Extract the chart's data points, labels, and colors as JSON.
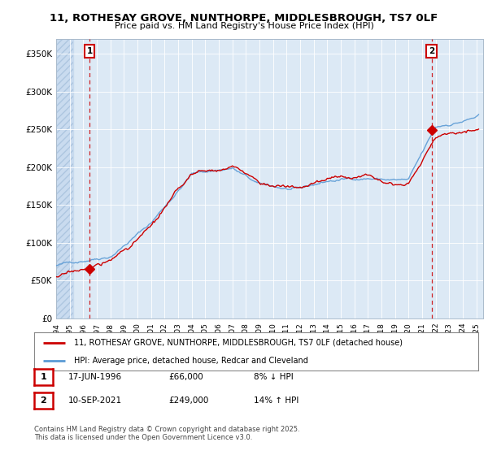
{
  "title": "11, ROTHESAY GROVE, NUNTHORPE, MIDDLESBROUGH, TS7 0LF",
  "subtitle": "Price paid vs. HM Land Registry's House Price Index (HPI)",
  "ylabel_ticks": [
    "£0",
    "£50K",
    "£100K",
    "£150K",
    "£200K",
    "£250K",
    "£300K",
    "£350K"
  ],
  "ytick_vals": [
    0,
    50000,
    100000,
    150000,
    200000,
    250000,
    300000,
    350000
  ],
  "ylim": [
    0,
    370000
  ],
  "xlim_start": 1994.0,
  "xlim_end": 2025.5,
  "hpi_color": "#5b9bd5",
  "price_color": "#cc0000",
  "marker1_date": 1996.46,
  "marker1_price": 66000,
  "marker2_date": 2021.69,
  "marker2_price": 249000,
  "legend_label1": "11, ROTHESAY GROVE, NUNTHORPE, MIDDLESBROUGH, TS7 0LF (detached house)",
  "legend_label2": "HPI: Average price, detached house, Redcar and Cleveland",
  "table_row1": [
    "1",
    "17-JUN-1996",
    "£66,000",
    "8% ↓ HPI"
  ],
  "table_row2": [
    "2",
    "10-SEP-2021",
    "£249,000",
    "14% ↑ HPI"
  ],
  "footer": "Contains HM Land Registry data © Crown copyright and database right 2025.\nThis data is licensed under the Open Government Licence v3.0.",
  "bg_color": "#ffffff",
  "plot_bg_color": "#dce9f5",
  "grid_color": "#ffffff"
}
